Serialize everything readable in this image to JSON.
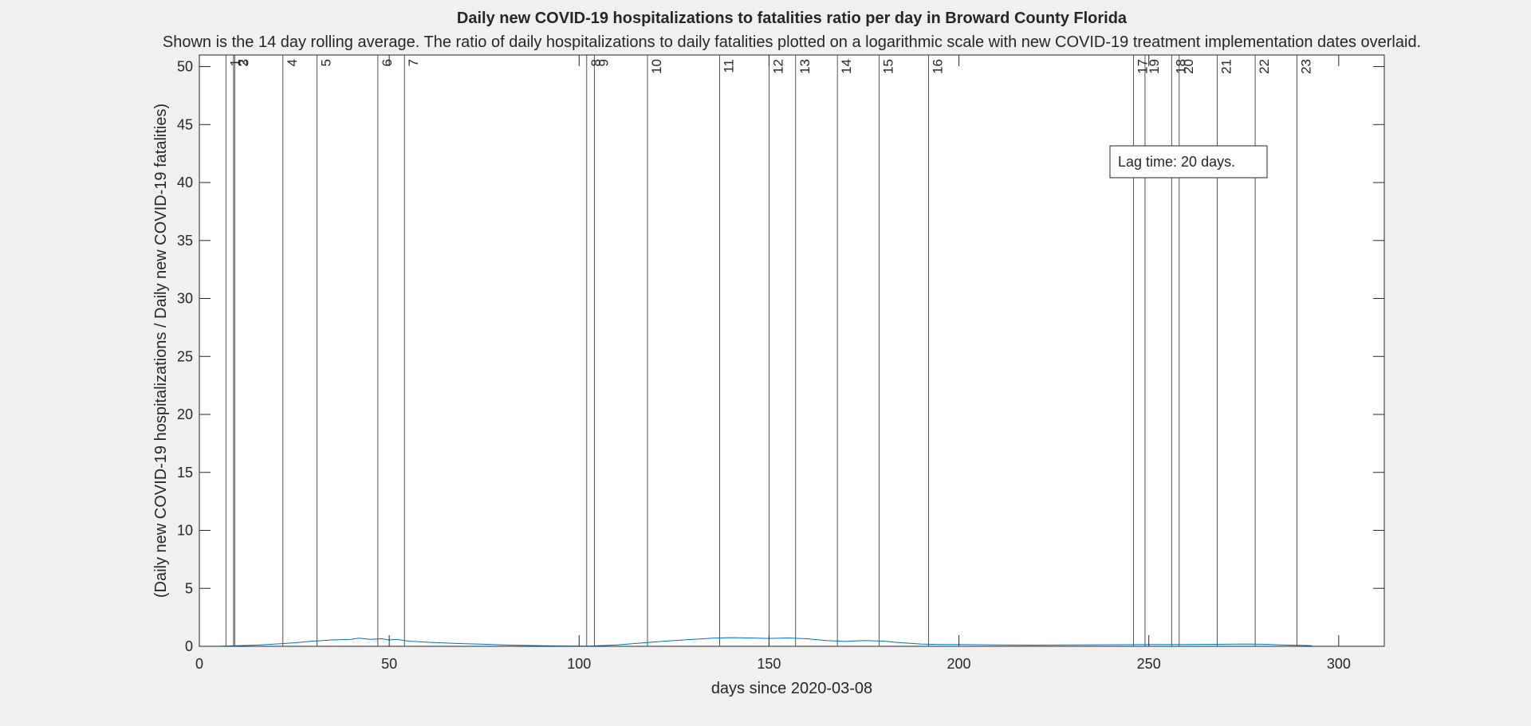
{
  "chart_data": {
    "type": "line",
    "title": "Daily new COVID-19 hospitalizations to fatalities ratio per day in Broward County Florida",
    "subtitle": "Shown is the 14 day rolling average. The ratio of daily hospitalizations to daily fatalities plotted on a logarithmic scale with new COVID-19 treatment implementation dates overlaid.",
    "xlabel": "days since 2020-03-08",
    "ylabel": "(Daily new COVID-19 hospitalizations / Daily new COVID-19 fatalities)",
    "xlim": [
      0,
      312
    ],
    "ylim": [
      0,
      51
    ],
    "x_ticks": [
      0,
      50,
      100,
      150,
      200,
      250,
      300
    ],
    "y_ticks": [
      0,
      5,
      10,
      15,
      20,
      25,
      30,
      35,
      40,
      45,
      50
    ],
    "grid": false,
    "annotation": "Lag time: 20 days.",
    "series_color": "#0072bd",
    "event_line_color": "#262626",
    "event_lines": [
      {
        "label": "1",
        "x": 7
      },
      {
        "label": "2",
        "x": 9
      },
      {
        "label": "3",
        "x": 9.3
      },
      {
        "label": "4",
        "x": 22
      },
      {
        "label": "5",
        "x": 31
      },
      {
        "label": "6",
        "x": 47
      },
      {
        "label": "7",
        "x": 54
      },
      {
        "label": "8",
        "x": 102
      },
      {
        "label": "9",
        "x": 104
      },
      {
        "label": "10",
        "x": 118
      },
      {
        "label": "11",
        "x": 137
      },
      {
        "label": "12",
        "x": 150
      },
      {
        "label": "13",
        "x": 157
      },
      {
        "label": "14",
        "x": 168
      },
      {
        "label": "15",
        "x": 179
      },
      {
        "label": "16",
        "x": 192
      },
      {
        "label": "17",
        "x": 246
      },
      {
        "label": "18",
        "x": 256
      },
      {
        "label": "19",
        "x": 249
      },
      {
        "label": "20",
        "x": 258
      },
      {
        "label": "21",
        "x": 268
      },
      {
        "label": "22",
        "x": 278
      },
      {
        "label": "23",
        "x": 289
      }
    ],
    "series": [
      {
        "x": [
          0,
          5,
          10,
          15,
          20,
          25,
          30,
          35,
          40,
          42,
          45,
          48,
          50,
          52,
          55,
          60,
          65,
          70,
          75,
          80,
          85,
          90,
          95,
          100,
          103,
          105,
          110,
          115,
          120,
          125,
          130,
          135,
          140,
          145,
          150,
          155,
          160,
          165,
          170,
          175,
          180,
          185,
          190,
          195,
          200,
          210,
          220,
          230,
          240,
          250,
          260,
          270,
          275,
          280,
          285,
          290,
          293
        ],
        "y": [
          0,
          0,
          0.05,
          0.1,
          0.2,
          0.3,
          0.45,
          0.55,
          0.6,
          0.7,
          0.6,
          0.65,
          0.55,
          0.6,
          0.45,
          0.35,
          0.28,
          0.22,
          0.18,
          0.12,
          0.08,
          0.05,
          0.03,
          0.02,
          0.02,
          0.05,
          0.12,
          0.25,
          0.38,
          0.5,
          0.6,
          0.7,
          0.75,
          0.72,
          0.68,
          0.72,
          0.65,
          0.5,
          0.42,
          0.5,
          0.45,
          0.3,
          0.2,
          0.15,
          0.15,
          0.12,
          0.1,
          0.12,
          0.14,
          0.15,
          0.16,
          0.18,
          0.2,
          0.18,
          0.12,
          0.08,
          0.05
        ]
      }
    ]
  }
}
